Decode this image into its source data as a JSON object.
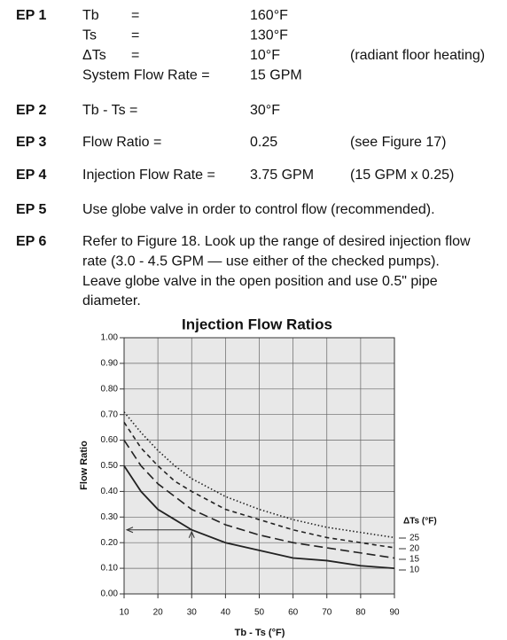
{
  "steps": [
    {
      "label": "EP 1",
      "rows": [
        [
          "Tb",
          "=",
          "160°F"
        ],
        [
          "Ts",
          "=",
          "130°F"
        ],
        [
          "ΔTs",
          "=",
          "10°F",
          "(radiant floor heating)"
        ],
        [
          "System Flow Rate =",
          "15 GPM"
        ]
      ]
    },
    {
      "label": "EP 2",
      "rows": [
        [
          "Tb - Ts =",
          "30°F"
        ]
      ]
    },
    {
      "label": "EP 3",
      "rows": [
        [
          "Flow Ratio =",
          "0.25",
          "(see Figure 17)"
        ]
      ]
    },
    {
      "label": "EP 4",
      "rows": [
        [
          "Injection Flow Rate =",
          "3.75 GPM",
          "(15 GPM x  0.25)"
        ]
      ]
    },
    {
      "label": "EP 5",
      "text": "Use globe valve in order to control flow (recommended)."
    },
    {
      "label": "EP 6",
      "lines": [
        "Refer to Figure 18. Look up the range of desired injection flow",
        "rate (3.0 - 4.5 GPM — use either of the checked pumps).",
        "Leave globe valve in the open position and use 0.5\" pipe",
        "diameter."
      ]
    }
  ],
  "chart_data": {
    "type": "line",
    "title": "Injection Flow Ratios",
    "x_label": "Tb - Ts (°F)",
    "y_label": "Flow Ratio",
    "legend_title": "ΔTs (°F)",
    "x": [
      10,
      15,
      20,
      25,
      30,
      40,
      50,
      60,
      70,
      80,
      90
    ],
    "series": [
      {
        "name": "25",
        "color": "#222222",
        "style": "dotted",
        "values": [
          0.71,
          0.63,
          0.56,
          0.5,
          0.45,
          0.38,
          0.33,
          0.29,
          0.26,
          0.24,
          0.22
        ]
      },
      {
        "name": "20",
        "color": "#222222",
        "style": "short-dash",
        "values": [
          0.67,
          0.57,
          0.5,
          0.44,
          0.4,
          0.33,
          0.29,
          0.25,
          0.22,
          0.2,
          0.18
        ]
      },
      {
        "name": "15",
        "color": "#222222",
        "style": "long-dash",
        "values": [
          0.6,
          0.5,
          0.43,
          0.38,
          0.33,
          0.27,
          0.23,
          0.2,
          0.18,
          0.16,
          0.14
        ]
      },
      {
        "name": "10",
        "color": "#222222",
        "style": "solid",
        "values": [
          0.5,
          0.4,
          0.33,
          0.29,
          0.25,
          0.2,
          0.17,
          0.14,
          0.13,
          0.11,
          0.1
        ]
      }
    ],
    "xlim": [
      10,
      90
    ],
    "ylim": [
      0,
      1
    ],
    "xticks": [
      10,
      20,
      30,
      40,
      50,
      60,
      70,
      80,
      90
    ],
    "yticks": [
      {
        "value": 0,
        "label": "0.00"
      },
      {
        "value": 0.1,
        "label": "0.10"
      },
      {
        "value": 0.2,
        "label": "0.20"
      },
      {
        "value": 0.3,
        "label": "0.30"
      },
      {
        "value": 0.4,
        "label": "0.40"
      },
      {
        "value": 0.5,
        "label": "0.50"
      },
      {
        "value": 0.6,
        "label": "0.60"
      },
      {
        "value": 0.7,
        "label": "0.70"
      },
      {
        "value": 0.8,
        "label": "0.80"
      },
      {
        "value": 0.9,
        "label": "0.90"
      },
      {
        "value": 1,
        "label": "1.00"
      }
    ],
    "grid": true
  }
}
